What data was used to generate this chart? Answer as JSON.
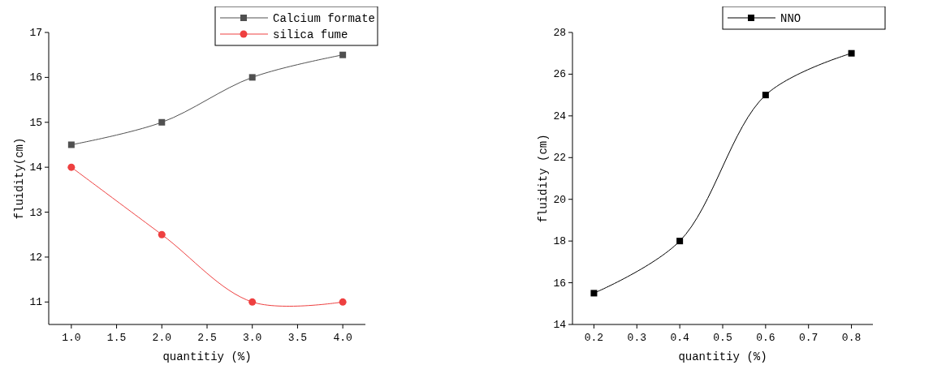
{
  "chart_data": [
    {
      "type": "line",
      "xlabel": "quantitiy (%)",
      "ylabel": "fluidity(cm)",
      "x": [
        1,
        2,
        3,
        4
      ],
      "xlim": [
        0.75,
        4.25
      ],
      "xticks": [
        {
          "value": 1,
          "label": "1.0"
        },
        {
          "value": 1.5,
          "label": "1.5"
        },
        {
          "value": 2,
          "label": "2.0"
        },
        {
          "value": 2.5,
          "label": "2.5"
        },
        {
          "value": 3,
          "label": "3.0"
        },
        {
          "value": 3.5,
          "label": "3.5"
        },
        {
          "value": 4,
          "label": "4.0"
        }
      ],
      "ylim": [
        10.5,
        17
      ],
      "yticks": [
        11,
        12,
        13,
        14,
        15,
        16,
        17
      ],
      "legend": "top right",
      "grid": false,
      "series": [
        {
          "name": "Calcium formate",
          "color": "#505050",
          "marker": "square",
          "values": [
            14.5,
            15,
            16,
            16.5
          ]
        },
        {
          "name": "silica fume",
          "color": "#ee4040",
          "marker": "circle",
          "values": [
            14,
            12.5,
            11,
            11
          ]
        }
      ]
    },
    {
      "type": "line",
      "xlabel": "quantitiy (%)",
      "ylabel": "fluidity (cm)",
      "x": [
        0.2,
        0.4,
        0.6,
        0.8
      ],
      "xlim": [
        0.15,
        0.85
      ],
      "xticks": [
        0.2,
        0.3,
        0.4,
        0.5,
        0.6,
        0.7,
        0.8
      ],
      "ylim": [
        14,
        28
      ],
      "yticks": [
        14,
        16,
        18,
        20,
        22,
        24,
        26,
        28
      ],
      "legend": "top right",
      "grid": false,
      "series": [
        {
          "name": "NNO",
          "color": "#000000",
          "marker": "square",
          "values": [
            15.5,
            18,
            25,
            27
          ]
        }
      ]
    }
  ]
}
